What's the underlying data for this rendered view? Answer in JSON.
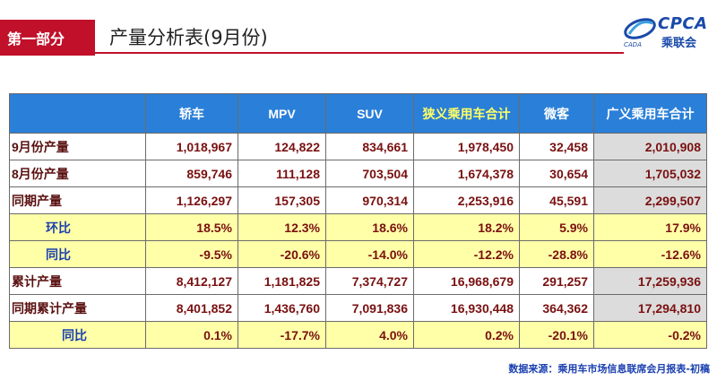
{
  "header": {
    "section_label": "第一部分",
    "title": "产量分析表(9月份)"
  },
  "logo": {
    "text": "CPCA",
    "sub": "乘联会",
    "small": "CADA"
  },
  "table": {
    "columns": [
      "",
      "轿车",
      "MPV",
      "SUV",
      "狭义乘用车合计",
      "微客",
      "广义乘用车合计"
    ],
    "rows": [
      {
        "label": "9月份产量",
        "values": [
          "1,018,967",
          "124,822",
          "834,661",
          "1,978,450",
          "32,458",
          "2,010,908"
        ]
      },
      {
        "label": "8月份产量",
        "values": [
          "859,746",
          "111,128",
          "703,504",
          "1,674,378",
          "30,654",
          "1,705,032"
        ]
      },
      {
        "label": "同期产量",
        "values": [
          "1,126,297",
          "157,305",
          "970,314",
          "2,253,916",
          "45,591",
          "2,299,507"
        ]
      },
      {
        "label": "环比",
        "values": [
          "18.5%",
          "12.3%",
          "18.6%",
          "18.2%",
          "5.9%",
          "17.9%"
        ]
      },
      {
        "label": "同比",
        "values": [
          "-9.5%",
          "-20.6%",
          "-14.0%",
          "-12.2%",
          "-28.8%",
          "-12.6%"
        ]
      },
      {
        "label": "累计产量",
        "values": [
          "8,412,127",
          "1,181,825",
          "7,374,727",
          "16,968,679",
          "291,257",
          "17,259,936"
        ]
      },
      {
        "label": "同期累计产量",
        "values": [
          "8,401,852",
          "1,436,760",
          "7,091,836",
          "16,930,448",
          "364,362",
          "17,294,810"
        ]
      },
      {
        "label": "同比",
        "values": [
          "0.1%",
          "-17.7%",
          "4.0%",
          "0.2%",
          "-20.1%",
          "-0.2%"
        ]
      }
    ]
  },
  "source": "数据来源：乘用车市场信息联席会月报表-初稿"
}
